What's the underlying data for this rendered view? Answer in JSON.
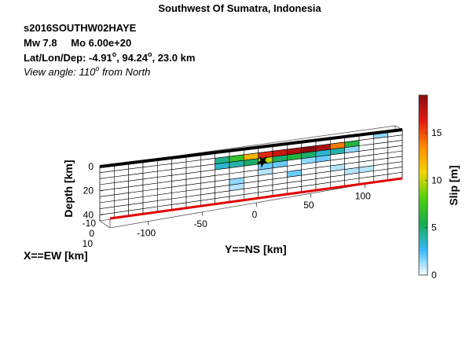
{
  "chart_data": {
    "type": "heatmap",
    "title": "Southwest Of Sumatra, Indonesia",
    "info": {
      "event_id": "s2016SOUTHW02HAYE",
      "mw": "Mw 7.8",
      "mo": "Mo 6.00e+20",
      "location_prefix": "Lat/Lon/Dep: ",
      "lat": "-4.91",
      "lon": "94.24",
      "dep": "23.0 km",
      "view_prefix": "View angle: 110",
      "view_suffix": " from North",
      "degree_mark": "o"
    },
    "xlabel": "X==EW [km]",
    "ylabel": "Y==NS [km]",
    "zlabel": "Depth [km]",
    "colorbar_label": "Slip [m]",
    "colorbar_ticks": [
      0,
      5,
      10,
      15
    ],
    "colorbar_range": [
      0,
      19
    ],
    "colormap": [
      "#ffffff",
      "#35b9ff",
      "#16ab4e",
      "#4fd10c",
      "#f2d600",
      "#ff8a00",
      "#e21b12",
      "#8b0c10"
    ],
    "x_ticks": [
      -10,
      0,
      10
    ],
    "y_ticks": [
      -100,
      -50,
      0,
      50,
      100
    ],
    "z_ticks": [
      0,
      20,
      40
    ],
    "grid_cols": 21,
    "grid_rows": 9,
    "slip": [
      [
        0,
        0,
        0,
        0,
        0,
        0,
        0,
        0,
        0,
        0,
        0,
        0,
        0,
        0,
        0,
        0,
        0,
        0,
        0,
        1.5,
        0
      ],
      [
        0,
        0,
        0,
        0,
        0,
        0,
        0,
        0,
        4.5,
        7,
        12,
        16,
        17,
        18,
        19,
        18,
        14,
        6,
        0,
        0,
        0
      ],
      [
        0,
        0,
        0,
        0,
        0,
        0,
        0,
        0,
        3.5,
        4,
        5,
        10,
        5,
        6,
        5,
        3.5,
        4,
        1.5,
        0,
        0,
        0
      ],
      [
        0,
        0,
        0,
        0,
        0,
        0,
        0,
        0,
        0,
        0,
        0,
        2,
        2,
        0,
        1.5,
        2,
        0,
        0,
        0,
        0,
        0
      ],
      [
        0,
        0,
        0,
        0,
        0,
        0,
        0,
        0,
        0,
        0,
        0,
        1,
        0,
        0,
        0,
        0,
        0,
        0,
        0,
        0,
        0
      ],
      [
        0,
        0,
        0,
        0,
        0,
        0,
        0,
        0,
        0,
        1.5,
        0,
        0,
        0,
        2,
        0,
        0,
        1,
        0,
        0,
        0,
        0
      ],
      [
        0,
        0,
        0,
        0,
        0,
        0,
        0,
        0,
        0,
        1,
        0,
        0,
        0,
        0,
        0,
        0,
        0,
        1,
        1,
        0,
        0
      ],
      [
        0,
        0,
        0,
        0,
        0,
        0,
        0,
        0,
        0,
        0,
        0,
        0,
        0,
        0,
        0,
        0,
        0,
        0,
        0,
        0,
        0
      ],
      [
        0,
        0,
        0,
        0,
        0,
        0,
        0,
        0,
        0,
        0,
        0,
        0,
        0,
        0,
        0,
        0,
        0,
        0,
        0,
        0,
        0
      ]
    ],
    "hypocenter": {
      "col": 11.3,
      "row": 2.6
    }
  }
}
